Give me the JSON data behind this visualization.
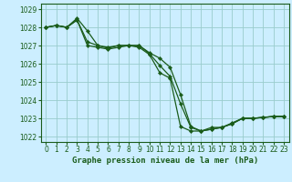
{
  "title": "Graphe pression niveau de la mer (hPa)",
  "background_color": "#cceeff",
  "grid_color": "#99cccc",
  "line_color": "#1a5c1a",
  "ylim": [
    1021.7,
    1029.3
  ],
  "xlim": [
    -0.5,
    23.5
  ],
  "yticks": [
    1022,
    1023,
    1024,
    1025,
    1026,
    1027,
    1028,
    1029
  ],
  "xticks": [
    0,
    1,
    2,
    3,
    4,
    5,
    6,
    7,
    8,
    9,
    10,
    11,
    12,
    13,
    14,
    15,
    16,
    17,
    18,
    19,
    20,
    21,
    22,
    23
  ],
  "series": [
    [
      1028.0,
      1028.1,
      1028.0,
      1028.5,
      1027.8,
      1027.0,
      1026.9,
      1027.0,
      1027.0,
      1027.0,
      1026.6,
      1026.3,
      1025.8,
      1024.3,
      1022.55,
      1022.3,
      1022.5,
      1022.5,
      1022.75,
      1023.0,
      1023.0,
      1023.05,
      1023.1,
      1023.1
    ],
    [
      1028.0,
      1028.1,
      1028.0,
      1028.4,
      1027.2,
      1027.0,
      1026.85,
      1027.0,
      1027.0,
      1027.0,
      1026.55,
      1025.9,
      1025.3,
      1023.8,
      1022.5,
      1022.3,
      1022.4,
      1022.5,
      1022.7,
      1023.0,
      1023.0,
      1023.05,
      1023.1,
      1023.1
    ],
    [
      1028.0,
      1028.1,
      1028.0,
      1028.4,
      1027.0,
      1026.9,
      1026.8,
      1026.9,
      1027.0,
      1026.9,
      1026.5,
      1025.5,
      1025.2,
      1022.55,
      1022.3,
      1022.3,
      1022.4,
      1022.5,
      1022.7,
      1023.0,
      1023.0,
      1023.05,
      1023.1,
      1023.1
    ]
  ],
  "title_fontsize": 6.5,
  "tick_fontsize": 5.5,
  "linewidth": 0.9,
  "markersize": 2.2
}
